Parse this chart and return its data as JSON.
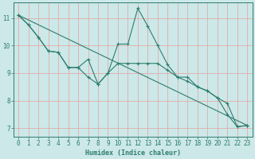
{
  "xlabel": "Humidex (Indice chaleur)",
  "bg_color": "#cce8e8",
  "grid_color": "#e8a0a0",
  "line_color": "#2e7d6e",
  "xlim": [
    -0.5,
    23.5
  ],
  "ylim": [
    6.7,
    11.55
  ],
  "xticks": [
    0,
    1,
    2,
    3,
    4,
    5,
    6,
    7,
    8,
    9,
    10,
    11,
    12,
    13,
    14,
    15,
    16,
    17,
    18,
    19,
    20,
    21,
    22,
    23
  ],
  "yticks": [
    7,
    8,
    9,
    10,
    11
  ],
  "series": [
    {
      "x": [
        0,
        23
      ],
      "y": [
        11.1,
        7.1
      ],
      "marker": true
    },
    {
      "x": [
        0,
        1,
        2,
        3,
        4,
        5,
        6,
        7,
        8,
        9,
        10,
        11,
        12,
        13,
        14,
        15,
        16,
        17,
        18,
        19,
        20,
        21,
        22,
        23
      ],
      "y": [
        11.1,
        10.75,
        10.3,
        9.8,
        9.75,
        9.2,
        9.2,
        9.5,
        8.6,
        9.0,
        9.35,
        9.35,
        9.35,
        9.35,
        9.35,
        9.1,
        8.85,
        8.7,
        8.5,
        8.35,
        8.1,
        7.9,
        7.05,
        7.1
      ],
      "marker": true
    },
    {
      "x": [
        0,
        1,
        2,
        3,
        4,
        5,
        6,
        7,
        8,
        9,
        10,
        11,
        12,
        13,
        14,
        15,
        16,
        17,
        18,
        19,
        20,
        21,
        22,
        23
      ],
      "y": [
        11.1,
        10.75,
        10.3,
        9.8,
        9.75,
        9.2,
        9.2,
        8.85,
        8.6,
        9.0,
        10.05,
        10.05,
        11.35,
        10.7,
        10.0,
        9.3,
        8.85,
        8.85,
        8.5,
        8.35,
        8.1,
        7.5,
        7.05,
        7.1
      ],
      "marker": true
    }
  ]
}
